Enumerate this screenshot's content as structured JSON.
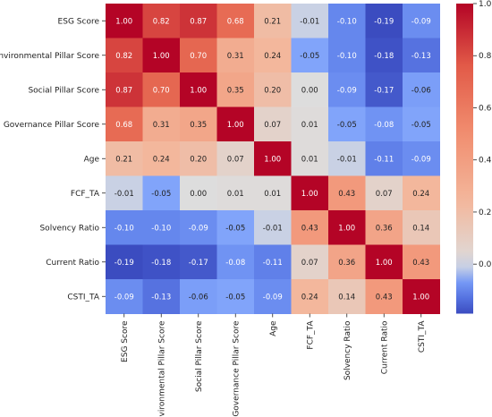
{
  "chart_data": {
    "type": "heatmap",
    "title": "",
    "xlabel": "",
    "ylabel": "",
    "row_labels": [
      "ESG Score",
      "Environmental Pillar Score",
      "Social Pillar Score",
      "Governance Pillar Score",
      "Age",
      "FCF_TA",
      "Solvency Ratio",
      "Current Ratio",
      "CSTI_TA"
    ],
    "col_labels": [
      "ESG Score",
      "Environmental Pillar Score",
      "Social Pillar Score",
      "Governance Pillar Score",
      "Age",
      "FCF_TA",
      "Solvency Ratio",
      "Current Ratio",
      "CSTI_TA"
    ],
    "values": [
      [
        1.0,
        0.82,
        0.87,
        0.68,
        0.21,
        -0.01,
        -0.1,
        -0.19,
        -0.09
      ],
      [
        0.82,
        1.0,
        0.7,
        0.31,
        0.24,
        -0.05,
        -0.1,
        -0.18,
        -0.13
      ],
      [
        0.87,
        0.7,
        1.0,
        0.35,
        0.2,
        -0.0,
        -0.09,
        -0.17,
        -0.06
      ],
      [
        0.68,
        0.31,
        0.35,
        1.0,
        0.07,
        0.01,
        -0.05,
        -0.08,
        -0.05
      ],
      [
        0.21,
        0.24,
        0.2,
        0.07,
        1.0,
        0.01,
        -0.01,
        -0.11,
        -0.09
      ],
      [
        -0.01,
        -0.05,
        -0.0,
        0.01,
        0.01,
        1.0,
        0.43,
        0.07,
        0.24
      ],
      [
        -0.1,
        -0.1,
        -0.09,
        -0.05,
        -0.01,
        0.43,
        1.0,
        0.36,
        0.14
      ],
      [
        -0.19,
        -0.18,
        -0.17,
        -0.08,
        -0.11,
        0.07,
        0.36,
        1.0,
        0.43
      ],
      [
        -0.09,
        -0.13,
        -0.06,
        -0.05,
        -0.09,
        0.24,
        0.14,
        0.43,
        1.0
      ]
    ],
    "value_format": "2 decimals",
    "colormap": "coolwarm",
    "color_range": [
      -0.19,
      1.0
    ],
    "colorbar": {
      "ticks": [
        0.0,
        0.2,
        0.4,
        0.6,
        0.8,
        1.0
      ],
      "tick_labels": [
        "0.0",
        "0.2",
        "0.4",
        "0.6",
        "0.8",
        "1.0"
      ],
      "placement": "right"
    },
    "grid": false
  }
}
